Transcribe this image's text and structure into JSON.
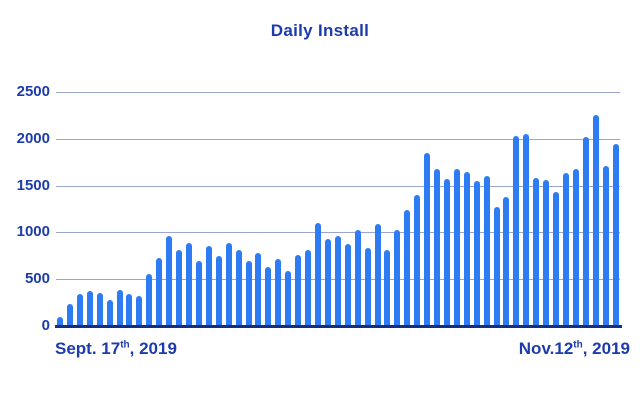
{
  "title": "Daily Install",
  "x_axis": {
    "start_label": {
      "text": "Sept. 17",
      "superscript": "th",
      "rest": ", 2019"
    },
    "end_label": {
      "text": "Nov.12",
      "superscript": "th",
      "rest": ", 2019"
    }
  },
  "y_axis": {
    "ticks": [
      0,
      500,
      1000,
      1500,
      2000,
      2500
    ]
  },
  "colors": {
    "bar": "#2e7cf4",
    "axis_text": "#1d3cab",
    "gridline": "#9aa6d2",
    "axis_line": "#17307e",
    "background": "#ffffff"
  },
  "chart_data": {
    "type": "bar",
    "title": "Daily Install",
    "xlabel": "",
    "ylabel": "",
    "x_start_label": "Sept. 17th, 2019",
    "x_end_label": "Nov.12th, 2019",
    "x_unit": "day",
    "y_ticks": [
      0,
      500,
      1000,
      1500,
      2000,
      2500
    ],
    "ylim": [
      0,
      2500
    ],
    "grid": "horizontal",
    "legend": "none",
    "values": [
      95,
      230,
      340,
      370,
      350,
      280,
      385,
      340,
      325,
      560,
      725,
      965,
      810,
      885,
      690,
      850,
      750,
      885,
      815,
      690,
      780,
      635,
      720,
      590,
      760,
      810,
      1100,
      930,
      965,
      880,
      1025,
      830,
      1085,
      815,
      1025,
      1240,
      1400,
      1850,
      1680,
      1575,
      1680,
      1645,
      1550,
      1600,
      1275,
      1380,
      2025,
      2050,
      1580,
      1555,
      1430,
      1630,
      1680,
      2020,
      2250,
      1710,
      1940
    ]
  }
}
